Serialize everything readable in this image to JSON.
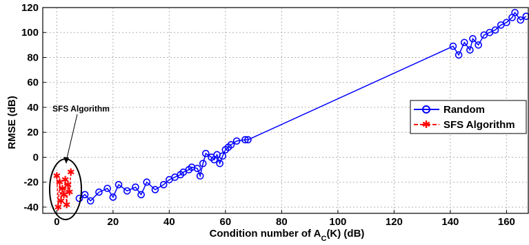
{
  "chart_data": {
    "type": "scatter",
    "xlabel_prefix": "Condition number of A",
    "xlabel_sub": "C",
    "xlabel_suffix": "(K) (dB)",
    "ylabel": "RMSE (dB)",
    "xlim": [
      -5,
      168
    ],
    "ylim": [
      -45,
      120
    ],
    "xticks": [
      0,
      20,
      40,
      60,
      80,
      100,
      120,
      140,
      160
    ],
    "yticks": [
      -40,
      -20,
      0,
      20,
      40,
      60,
      80,
      100,
      120
    ],
    "grid": true,
    "legend_placement": "right",
    "legend": [
      "Random",
      "SFS Algorithm"
    ],
    "annotation": "SFS Algorithm",
    "colors": {
      "random": "#0000ff",
      "sfs": "#ff0000"
    },
    "series": [
      {
        "name": "Random",
        "marker": "circle",
        "x": [
          8,
          10,
          12,
          15,
          18,
          20,
          22,
          25,
          28,
          30,
          32,
          35,
          38,
          40,
          42,
          44,
          45,
          47,
          48,
          50,
          51,
          52,
          53,
          55,
          56,
          57,
          58,
          59,
          60,
          61,
          62,
          64,
          67,
          68,
          141,
          143,
          145,
          147,
          148,
          150,
          152,
          154,
          156,
          158,
          160,
          162,
          163,
          165,
          167
        ],
        "y": [
          -33,
          -30,
          -35,
          -28,
          -25,
          -32,
          -22,
          -27,
          -24,
          -30,
          -20,
          -26,
          -22,
          -18,
          -16,
          -14,
          -12,
          -10,
          -8,
          -9,
          -15,
          -5,
          3,
          0,
          -2,
          2,
          -5,
          1,
          6,
          8,
          10,
          13,
          14,
          14,
          89,
          82,
          92,
          86,
          95,
          90,
          98,
          100,
          102,
          106,
          108,
          112,
          116,
          110,
          113
        ]
      },
      {
        "name": "SFS Algorithm",
        "marker": "star",
        "x": [
          0,
          0.5,
          1,
          1.5,
          2,
          2.5,
          3,
          3.5,
          4,
          4.5,
          5
        ],
        "y": [
          -15,
          -40,
          -20,
          -35,
          -25,
          -30,
          -18,
          -38,
          -22,
          -28,
          -12
        ]
      }
    ]
  }
}
